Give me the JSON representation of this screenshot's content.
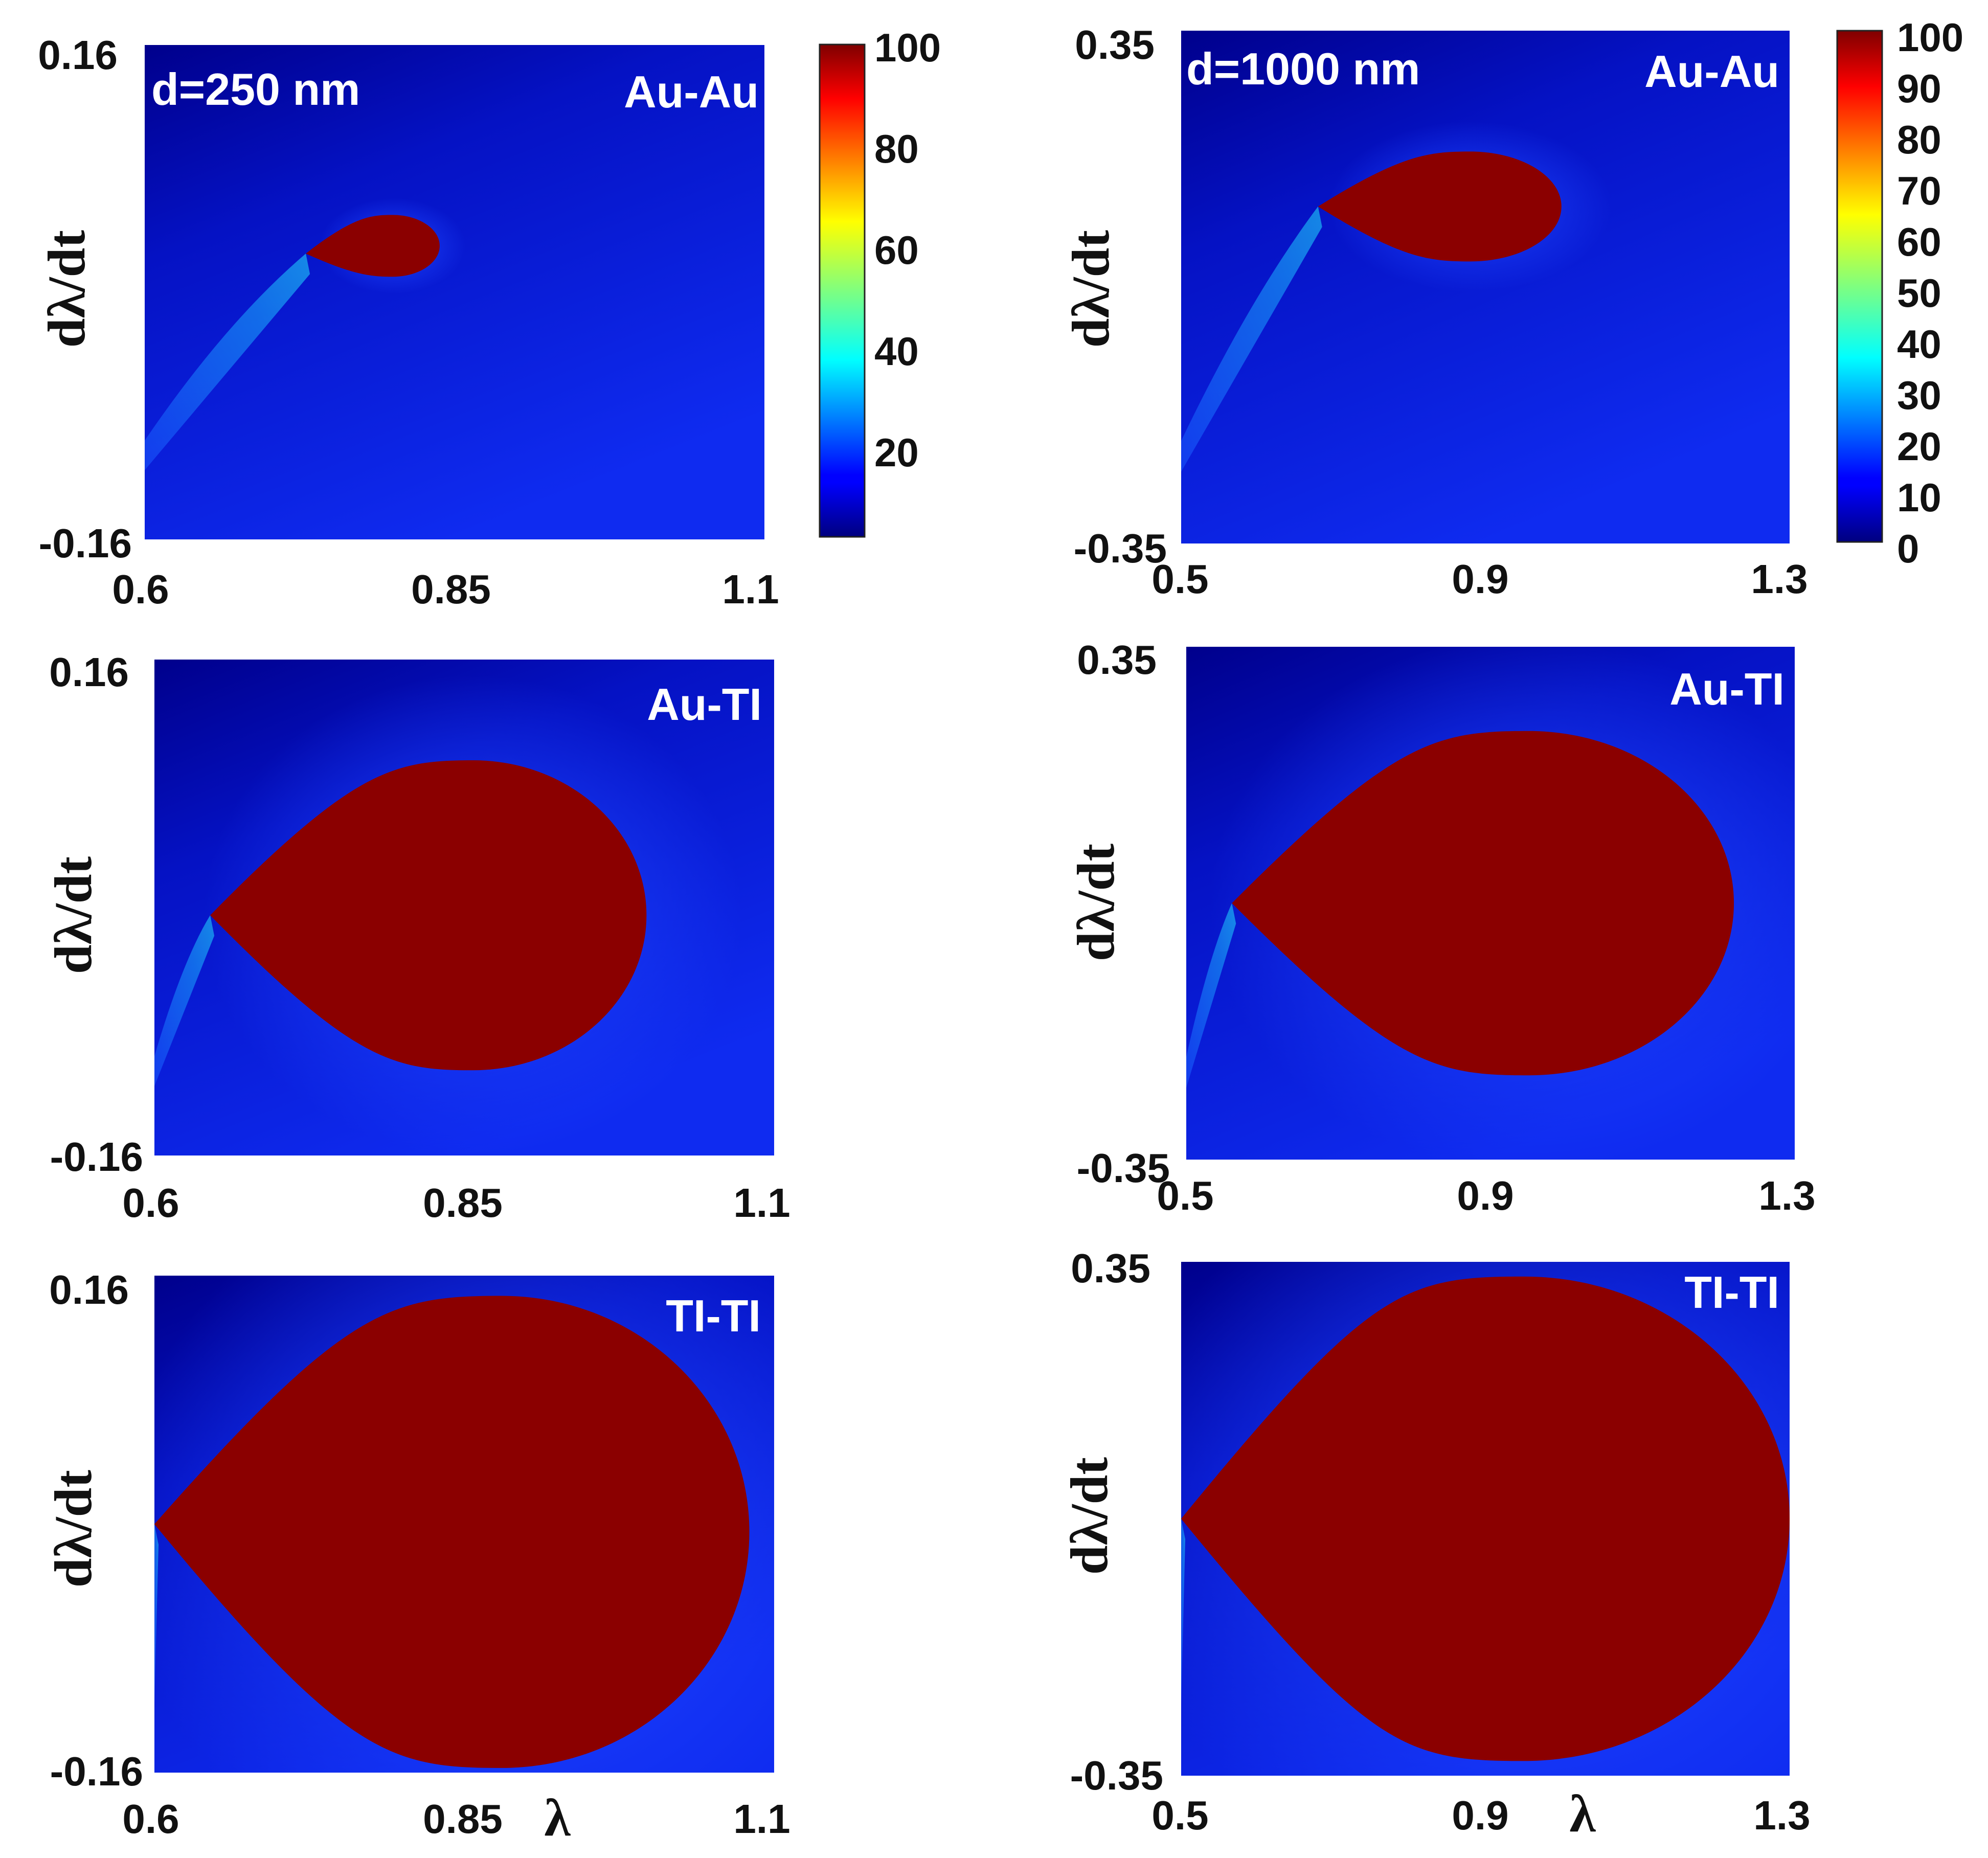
{
  "chart_data": [
    {
      "type": "heatmap",
      "annotation": "d=250 nm",
      "label": "Au-Au",
      "xlim": [
        0.6,
        1.1
      ],
      "ylim": [
        -0.16,
        0.16
      ],
      "xticks": [
        "0.6",
        "0.85",
        "1.1"
      ],
      "yticks_top": "0.16",
      "yticks_bottom": "-0.16",
      "ylabel": "dλ/dt",
      "xlabel": "",
      "region_value": 100,
      "region": {
        "tip_x": 0.73,
        "tip_y": 0.025,
        "center_x": 0.8,
        "center_y": 0.03,
        "rx": 0.038,
        "ry": 0.02
      }
    },
    {
      "type": "heatmap",
      "annotation": "d=1000 nm",
      "label": "Au-Au",
      "xlim": [
        0.5,
        1.3
      ],
      "ylim": [
        -0.35,
        0.35
      ],
      "xticks": [
        "0.5",
        "0.9",
        "1.3"
      ],
      "yticks_top": "0.35",
      "yticks_bottom": "-0.35",
      "ylabel": "dλ/dt",
      "xlabel": "",
      "region_value": 100,
      "region": {
        "tip_x": 0.68,
        "tip_y": 0.11,
        "center_x": 0.88,
        "center_y": 0.11,
        "rx": 0.12,
        "ry": 0.075
      }
    },
    {
      "type": "heatmap",
      "annotation": "",
      "label": "Au-TI",
      "xlim": [
        0.6,
        1.1
      ],
      "ylim": [
        -0.16,
        0.16
      ],
      "xticks": [
        "0.6",
        "0.85",
        "1.1"
      ],
      "yticks_top": "0.16",
      "yticks_bottom": "-0.16",
      "ylabel": "dλ/dt",
      "xlabel": "",
      "region_value": 100,
      "region": {
        "tip_x": 0.645,
        "tip_y": -0.005,
        "center_x": 0.857,
        "center_y": -0.005,
        "rx": 0.14,
        "ry": 0.1
      }
    },
    {
      "type": "heatmap",
      "annotation": "",
      "label": "Au-TI",
      "xlim": [
        0.5,
        1.3
      ],
      "ylim": [
        -0.35,
        0.35
      ],
      "xticks": [
        "0.5",
        "0.9",
        "1.3"
      ],
      "yticks_top": "0.35",
      "yticks_bottom": "-0.35",
      "ylabel": "dλ/dt",
      "xlabel": "",
      "region_value": 100,
      "region": {
        "tip_x": 0.56,
        "tip_y": 0.0,
        "center_x": 0.95,
        "center_y": 0.0,
        "rx": 0.27,
        "ry": 0.235
      }
    },
    {
      "type": "heatmap",
      "annotation": "",
      "label": "TI-TI",
      "xlim": [
        0.6,
        1.1
      ],
      "ylim": [
        -0.16,
        0.16
      ],
      "xticks": [
        "0.6",
        "0.85",
        "1.1"
      ],
      "yticks_top": "0.16",
      "yticks_bottom": "-0.16",
      "ylabel": "dλ/dt",
      "xlabel": "λ",
      "region_value": 100,
      "region": {
        "tip_x": 0.6,
        "tip_y": 0.0,
        "center_x": 0.88,
        "center_y": -0.005,
        "rx": 0.2,
        "ry": 0.152
      }
    },
    {
      "type": "heatmap",
      "annotation": "",
      "label": "TI-TI",
      "xlim": [
        0.5,
        1.3
      ],
      "ylim": [
        -0.35,
        0.35
      ],
      "xticks": [
        "0.5",
        "0.9",
        "1.3"
      ],
      "yticks_top": "0.35",
      "yticks_bottom": "-0.35",
      "ylabel": "dλ/dt",
      "xlabel": "λ",
      "region_value": 100,
      "region": {
        "tip_x": 0.5,
        "tip_y": 0.0,
        "center_x": 0.95,
        "center_y": 0.0,
        "rx": 0.35,
        "ry": 0.33
      }
    }
  ],
  "colorbars": [
    {
      "ticks": [
        "100",
        "80",
        "60",
        "40",
        "20"
      ],
      "range": [
        0,
        100
      ]
    },
    {
      "ticks": [
        "100",
        "90",
        "80",
        "70",
        "60",
        "50",
        "40",
        "30",
        "20",
        "10",
        "0"
      ],
      "range": [
        0,
        100
      ]
    }
  ],
  "colors": {
    "background_blue": "#1726e0",
    "deep_blue": "#00008f",
    "region_red": "#8b0000"
  }
}
